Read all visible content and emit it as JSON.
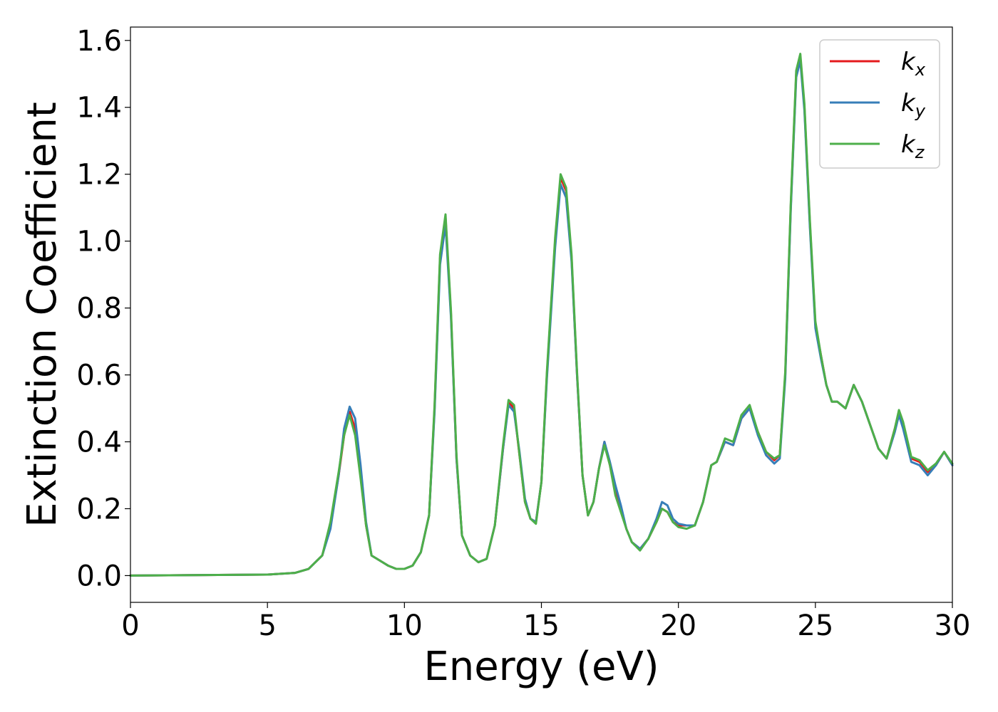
{
  "chart_data": {
    "type": "line",
    "xlabel": "Energy (eV)",
    "ylabel": "Extinction Coefficient",
    "xlim": [
      0,
      30
    ],
    "ylim": [
      -0.08,
      1.64
    ],
    "xticks": [
      0,
      5,
      10,
      15,
      20,
      25,
      30
    ],
    "xtick_labels": [
      "0",
      "5",
      "10",
      "15",
      "20",
      "25",
      "30"
    ],
    "yticks": [
      0.0,
      0.2,
      0.4,
      0.6,
      0.8,
      1.0,
      1.2,
      1.4,
      1.6
    ],
    "ytick_labels": [
      "0.0",
      "0.2",
      "0.4",
      "0.6",
      "0.8",
      "1.0",
      "1.2",
      "1.4",
      "1.6"
    ],
    "grid": false,
    "legend_position": "top-right",
    "series": [
      {
        "name": "k_x",
        "legend_base": "k",
        "legend_sub": "x",
        "color": "#e41a1c",
        "x": [
          0,
          5,
          6,
          6.5,
          7,
          7.3,
          7.6,
          7.8,
          8.0,
          8.2,
          8.4,
          8.6,
          8.8,
          9.1,
          9.4,
          9.7,
          10.0,
          10.3,
          10.6,
          10.9,
          11.1,
          11.3,
          11.5,
          11.7,
          11.9,
          12.1,
          12.4,
          12.7,
          13.0,
          13.3,
          13.6,
          13.8,
          14.0,
          14.2,
          14.4,
          14.6,
          14.8,
          15.0,
          15.2,
          15.5,
          15.7,
          15.9,
          16.1,
          16.3,
          16.5,
          16.7,
          16.9,
          17.1,
          17.3,
          17.5,
          17.7,
          17.9,
          18.1,
          18.3,
          18.6,
          18.9,
          19.2,
          19.4,
          19.6,
          19.8,
          20.0,
          20.3,
          20.6,
          20.9,
          21.2,
          21.4,
          21.7,
          22.0,
          22.3,
          22.6,
          22.9,
          23.2,
          23.5,
          23.7,
          23.9,
          24.1,
          24.3,
          24.45,
          24.6,
          24.8,
          25.0,
          25.2,
          25.4,
          25.6,
          25.8,
          26.1,
          26.4,
          26.7,
          27.0,
          27.3,
          27.6,
          27.9,
          28.05,
          28.2,
          28.5,
          28.8,
          29.1,
          29.4,
          29.7,
          30.0
        ],
        "y": [
          0.0,
          0.003,
          0.008,
          0.02,
          0.06,
          0.15,
          0.3,
          0.42,
          0.49,
          0.44,
          0.3,
          0.15,
          0.06,
          0.045,
          0.03,
          0.02,
          0.02,
          0.03,
          0.07,
          0.18,
          0.5,
          0.95,
          1.07,
          0.78,
          0.35,
          0.12,
          0.06,
          0.04,
          0.05,
          0.15,
          0.38,
          0.52,
          0.5,
          0.36,
          0.22,
          0.17,
          0.16,
          0.28,
          0.6,
          1.0,
          1.19,
          1.15,
          0.95,
          0.6,
          0.3,
          0.18,
          0.22,
          0.32,
          0.4,
          0.33,
          0.25,
          0.2,
          0.14,
          0.1,
          0.08,
          0.11,
          0.16,
          0.2,
          0.19,
          0.16,
          0.15,
          0.15,
          0.15,
          0.22,
          0.33,
          0.34,
          0.4,
          0.39,
          0.47,
          0.5,
          0.43,
          0.37,
          0.345,
          0.36,
          0.6,
          1.1,
          1.5,
          1.55,
          1.4,
          1.05,
          0.75,
          0.66,
          0.57,
          0.52,
          0.52,
          0.5,
          0.57,
          0.52,
          0.45,
          0.38,
          0.35,
          0.44,
          0.49,
          0.45,
          0.35,
          0.34,
          0.31,
          0.33,
          0.37,
          0.33
        ]
      },
      {
        "name": "k_y",
        "legend_base": "k",
        "legend_sub": "y",
        "color": "#377eb8",
        "x": [
          0,
          5,
          6,
          6.5,
          7,
          7.3,
          7.6,
          7.8,
          8.0,
          8.2,
          8.4,
          8.6,
          8.8,
          9.1,
          9.4,
          9.7,
          10.0,
          10.3,
          10.6,
          10.9,
          11.1,
          11.3,
          11.5,
          11.7,
          11.9,
          12.1,
          12.4,
          12.7,
          13.0,
          13.3,
          13.6,
          13.8,
          14.0,
          14.2,
          14.4,
          14.6,
          14.8,
          15.0,
          15.2,
          15.5,
          15.7,
          15.9,
          16.1,
          16.3,
          16.5,
          16.7,
          16.9,
          17.1,
          17.3,
          17.5,
          17.7,
          17.9,
          18.1,
          18.3,
          18.6,
          18.9,
          19.2,
          19.4,
          19.6,
          19.8,
          20.0,
          20.3,
          20.6,
          20.9,
          21.2,
          21.4,
          21.7,
          22.0,
          22.3,
          22.6,
          22.9,
          23.2,
          23.5,
          23.7,
          23.9,
          24.1,
          24.3,
          24.45,
          24.6,
          24.8,
          25.0,
          25.2,
          25.4,
          25.6,
          25.8,
          26.1,
          26.4,
          26.7,
          27.0,
          27.3,
          27.6,
          27.9,
          28.05,
          28.2,
          28.5,
          28.8,
          29.1,
          29.4,
          29.7,
          30.0
        ],
        "y": [
          0.0,
          0.003,
          0.008,
          0.02,
          0.06,
          0.14,
          0.3,
          0.44,
          0.505,
          0.47,
          0.33,
          0.16,
          0.06,
          0.045,
          0.03,
          0.02,
          0.02,
          0.03,
          0.07,
          0.18,
          0.49,
          0.93,
          1.05,
          0.77,
          0.35,
          0.12,
          0.06,
          0.04,
          0.05,
          0.15,
          0.38,
          0.51,
          0.49,
          0.37,
          0.23,
          0.17,
          0.16,
          0.28,
          0.59,
          0.98,
          1.17,
          1.13,
          0.94,
          0.6,
          0.3,
          0.18,
          0.22,
          0.32,
          0.4,
          0.34,
          0.27,
          0.21,
          0.14,
          0.1,
          0.08,
          0.11,
          0.17,
          0.22,
          0.21,
          0.17,
          0.155,
          0.15,
          0.15,
          0.22,
          0.33,
          0.34,
          0.4,
          0.39,
          0.47,
          0.5,
          0.42,
          0.36,
          0.335,
          0.35,
          0.59,
          1.09,
          1.49,
          1.54,
          1.39,
          1.04,
          0.74,
          0.65,
          0.57,
          0.52,
          0.52,
          0.5,
          0.57,
          0.52,
          0.45,
          0.38,
          0.35,
          0.43,
          0.48,
          0.44,
          0.34,
          0.33,
          0.3,
          0.33,
          0.37,
          0.33
        ]
      },
      {
        "name": "k_z",
        "legend_base": "k",
        "legend_sub": "z",
        "color": "#4daf4a",
        "x": [
          0,
          5,
          6,
          6.5,
          7,
          7.3,
          7.6,
          7.8,
          8.0,
          8.2,
          8.4,
          8.6,
          8.8,
          9.1,
          9.4,
          9.7,
          10.0,
          10.3,
          10.6,
          10.9,
          11.1,
          11.3,
          11.5,
          11.7,
          11.9,
          12.1,
          12.4,
          12.7,
          13.0,
          13.3,
          13.6,
          13.8,
          14.0,
          14.2,
          14.4,
          14.6,
          14.8,
          15.0,
          15.2,
          15.5,
          15.7,
          15.9,
          16.1,
          16.3,
          16.5,
          16.7,
          16.9,
          17.1,
          17.3,
          17.5,
          17.7,
          17.9,
          18.1,
          18.3,
          18.6,
          18.9,
          19.2,
          19.4,
          19.6,
          19.8,
          20.0,
          20.3,
          20.6,
          20.9,
          21.2,
          21.4,
          21.7,
          22.0,
          22.3,
          22.6,
          22.9,
          23.2,
          23.5,
          23.7,
          23.9,
          24.1,
          24.3,
          24.45,
          24.6,
          24.8,
          25.0,
          25.2,
          25.4,
          25.6,
          25.8,
          26.1,
          26.4,
          26.7,
          27.0,
          27.3,
          27.6,
          27.9,
          28.05,
          28.2,
          28.5,
          28.8,
          29.1,
          29.4,
          29.7,
          30.0
        ],
        "y": [
          0.0,
          0.003,
          0.008,
          0.02,
          0.06,
          0.16,
          0.31,
          0.42,
          0.48,
          0.42,
          0.29,
          0.15,
          0.06,
          0.045,
          0.03,
          0.02,
          0.02,
          0.03,
          0.07,
          0.18,
          0.51,
          0.96,
          1.08,
          0.79,
          0.36,
          0.12,
          0.06,
          0.04,
          0.05,
          0.15,
          0.39,
          0.525,
          0.51,
          0.36,
          0.22,
          0.17,
          0.155,
          0.28,
          0.61,
          1.01,
          1.2,
          1.16,
          0.96,
          0.61,
          0.3,
          0.18,
          0.22,
          0.32,
          0.39,
          0.33,
          0.24,
          0.19,
          0.14,
          0.1,
          0.075,
          0.11,
          0.16,
          0.2,
          0.19,
          0.16,
          0.145,
          0.14,
          0.15,
          0.22,
          0.33,
          0.34,
          0.41,
          0.4,
          0.48,
          0.51,
          0.43,
          0.37,
          0.35,
          0.36,
          0.61,
          1.11,
          1.51,
          1.56,
          1.41,
          1.06,
          0.76,
          0.66,
          0.57,
          0.52,
          0.52,
          0.5,
          0.57,
          0.52,
          0.45,
          0.38,
          0.35,
          0.44,
          0.495,
          0.46,
          0.355,
          0.345,
          0.315,
          0.335,
          0.37,
          0.335
        ]
      }
    ]
  }
}
